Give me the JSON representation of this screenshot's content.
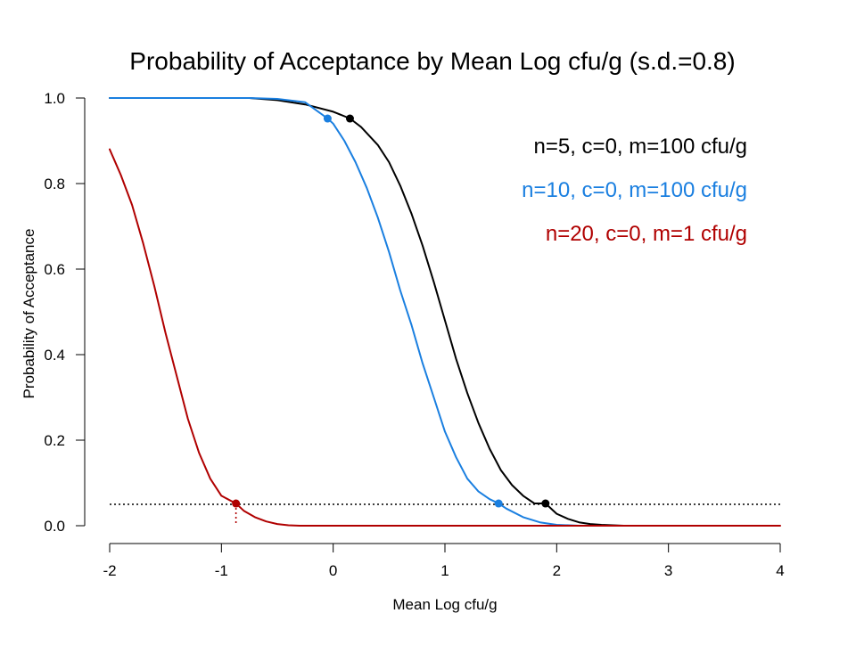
{
  "colors": {
    "background": "#ffffff",
    "axis": "#000000",
    "reference_line": "#000000"
  },
  "chart_data": {
    "type": "line",
    "title": "Probability of Acceptance by Mean Log cfu/g (s.d.=0.8)",
    "xlabel": "Mean Log cfu/g",
    "ylabel": "Probability of Acceptance",
    "xlim": [
      -2,
      4
    ],
    "ylim": [
      0,
      1
    ],
    "x_ticks": [
      -2,
      -1,
      0,
      1,
      2,
      3,
      4
    ],
    "x_tick_labels": [
      "-2",
      "-1",
      "0",
      "1",
      "2",
      "3",
      "4"
    ],
    "y_ticks": [
      0,
      0.2,
      0.4,
      0.6,
      0.8,
      1
    ],
    "y_tick_labels": [
      "0.0",
      "0.2",
      "0.4",
      "0.6",
      "0.8",
      "1.0"
    ],
    "grid": false,
    "legend_position": "top-right",
    "reference_line": {
      "y": 0.05,
      "style": "dotted"
    },
    "series": [
      {
        "name": "n=5, c=0, m=100 cfu/g",
        "color": "#000000",
        "x": [
          -2.0,
          -1.75,
          -1.5,
          -1.25,
          -1.0,
          -0.75,
          -0.5,
          -0.25,
          0.0,
          0.15,
          0.25,
          0.4,
          0.5,
          0.6,
          0.7,
          0.8,
          0.9,
          1.0,
          1.1,
          1.2,
          1.3,
          1.4,
          1.5,
          1.6,
          1.7,
          1.8,
          1.9,
          2.0,
          2.1,
          2.2,
          2.3,
          2.4,
          2.6
        ],
        "values": [
          1.0,
          1.0,
          1.0,
          1.0,
          1.0,
          1.0,
          0.995,
          0.985,
          0.968,
          0.952,
          0.932,
          0.89,
          0.85,
          0.795,
          0.73,
          0.655,
          0.57,
          0.48,
          0.39,
          0.31,
          0.24,
          0.18,
          0.13,
          0.095,
          0.07,
          0.052,
          0.052,
          0.028,
          0.016,
          0.008,
          0.004,
          0.002,
          0.0
        ]
      },
      {
        "name": "n=10, c=0, m=100 cfu/g",
        "color": "#1a7fe0",
        "x": [
          -2.0,
          -1.75,
          -1.5,
          -1.25,
          -1.0,
          -0.75,
          -0.5,
          -0.25,
          -0.05,
          0.0,
          0.1,
          0.2,
          0.3,
          0.4,
          0.5,
          0.6,
          0.7,
          0.8,
          0.9,
          1.0,
          1.1,
          1.2,
          1.3,
          1.4,
          1.48,
          1.55,
          1.7,
          1.85,
          2.0,
          2.2
        ],
        "values": [
          1.0,
          1.0,
          1.0,
          1.0,
          1.0,
          1.0,
          0.998,
          0.99,
          0.952,
          0.94,
          0.9,
          0.85,
          0.79,
          0.72,
          0.64,
          0.55,
          0.47,
          0.38,
          0.3,
          0.22,
          0.16,
          0.11,
          0.08,
          0.062,
          0.052,
          0.04,
          0.02,
          0.008,
          0.002,
          0.0
        ]
      },
      {
        "name": "n=20, c=0, m=1 cfu/g",
        "color": "#b00000",
        "x": [
          -2.0,
          -1.9,
          -1.8,
          -1.7,
          -1.6,
          -1.5,
          -1.4,
          -1.3,
          -1.2,
          -1.1,
          -1.0,
          -0.9,
          -0.87,
          -0.8,
          -0.7,
          -0.6,
          -0.5,
          -0.4,
          -0.3,
          0.0,
          1.0,
          2.0,
          3.0,
          4.0
        ],
        "values": [
          0.88,
          0.82,
          0.75,
          0.66,
          0.56,
          0.45,
          0.35,
          0.25,
          0.17,
          0.11,
          0.07,
          0.056,
          0.052,
          0.035,
          0.02,
          0.01,
          0.004,
          0.001,
          0.0,
          0.0,
          0.0,
          0.0,
          0.0,
          0.0
        ]
      }
    ],
    "markers": [
      {
        "series": 0,
        "x": 0.15,
        "y": 0.952
      },
      {
        "series": 0,
        "x": 1.9,
        "y": 0.052
      },
      {
        "series": 1,
        "x": -0.05,
        "y": 0.952
      },
      {
        "series": 1,
        "x": 1.48,
        "y": 0.052
      },
      {
        "series": 2,
        "x": -0.87,
        "y": 0.052,
        "drop_line": true
      }
    ]
  }
}
